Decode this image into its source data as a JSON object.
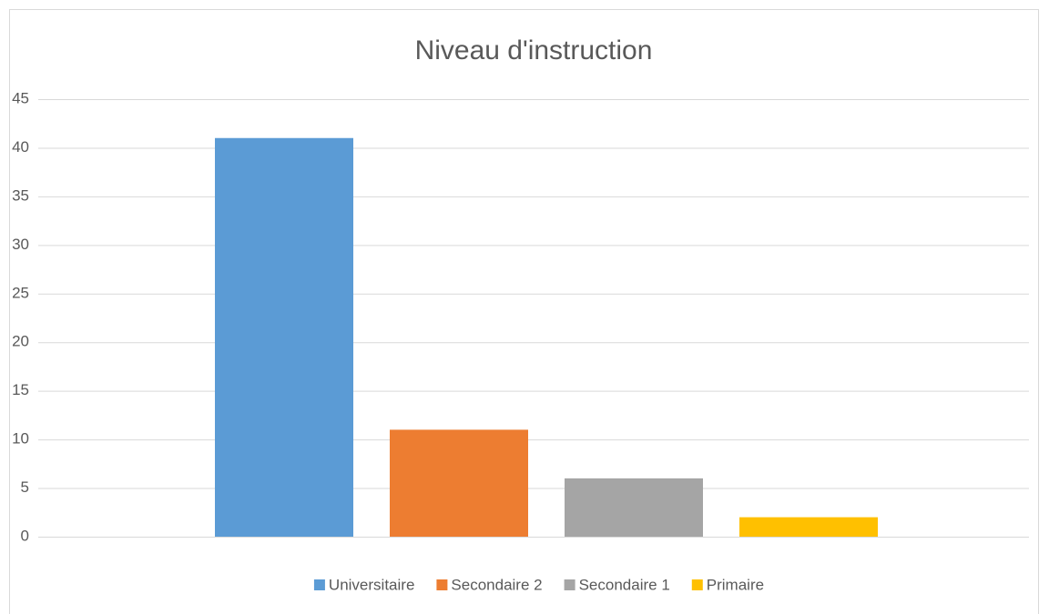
{
  "chart_data": {
    "type": "bar",
    "title": "Niveau d'instruction",
    "categories": [
      null
    ],
    "series": [
      {
        "name": "Universitaire",
        "color": "#5b9bd5",
        "values": [
          41
        ]
      },
      {
        "name": "Secondaire 2",
        "color": "#ed7d31",
        "values": [
          11
        ]
      },
      {
        "name": "Secondaire 1",
        "color": "#a5a5a5",
        "values": [
          6
        ]
      },
      {
        "name": "Primaire",
        "color": "#ffc000",
        "values": [
          2
        ]
      }
    ],
    "ylim": [
      0,
      45
    ],
    "yticks": [
      0,
      5,
      10,
      15,
      20,
      25,
      30,
      35,
      40,
      45
    ],
    "grid": true,
    "legend": "bottom"
  }
}
